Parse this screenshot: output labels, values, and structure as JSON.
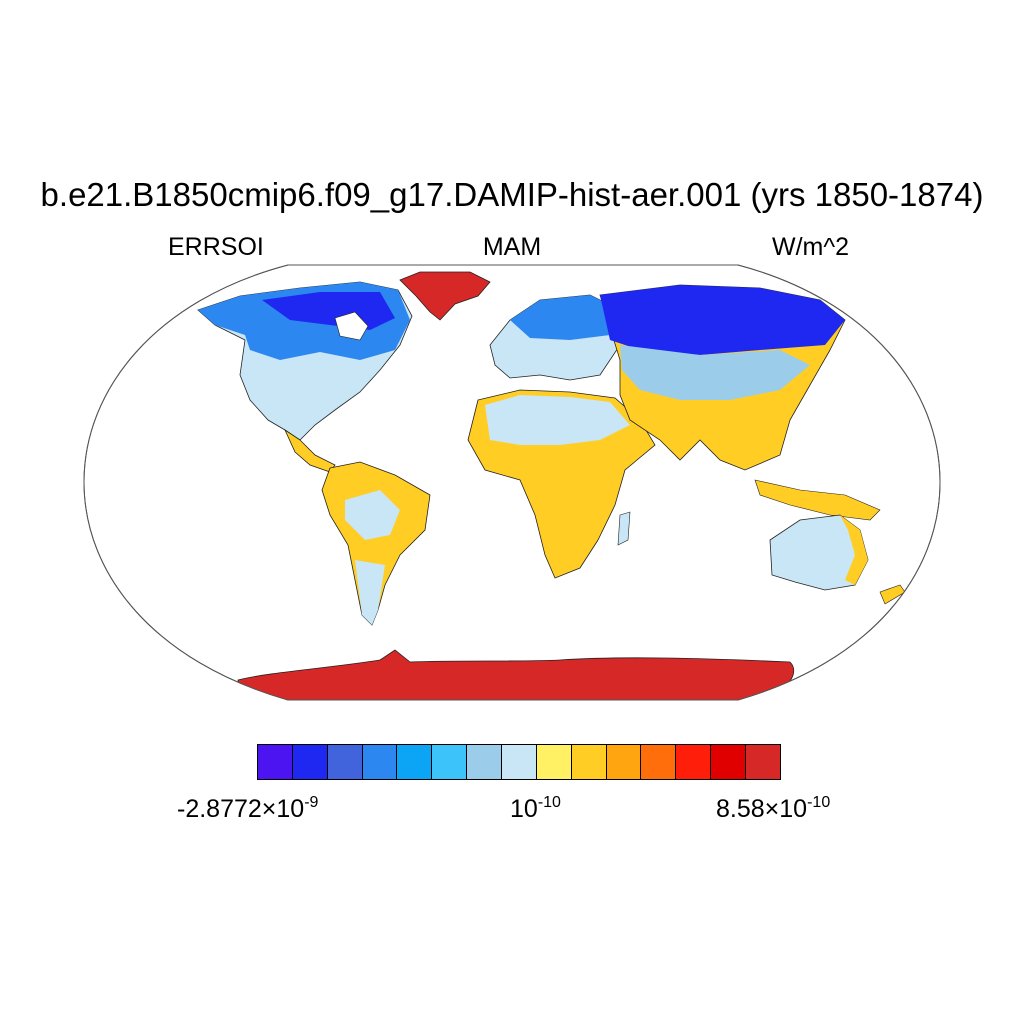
{
  "title": "b.e21.B1850cmip6.f09_g17.DAMIP-hist-aer.001 (yrs 1850-1874)",
  "subtitle_left": "ERRSOI",
  "subtitle_center": "MAM",
  "subtitle_right": "W/m^2",
  "colorbar": {
    "colors": [
      "#4b14f0",
      "#1e28f0",
      "#4164dc",
      "#2d87f0",
      "#0ca5f5",
      "#3cc3fa",
      "#9bcdeb",
      "#c8e6f5",
      "#fff064",
      "#ffcd23",
      "#ffa50f",
      "#ff6e0a",
      "#ff1e0a",
      "#e10000",
      "#d72828"
    ],
    "label_left_mantissa": "-2.8772",
    "label_left_times": "×10",
    "label_left_exp": "-9",
    "label_mid_base": "10",
    "label_mid_exp": "-10",
    "label_right_mantissa": "8.58",
    "label_right_times": "×10",
    "label_right_exp": "-10"
  },
  "map": {
    "projection": "Robinson",
    "land_colors": {
      "polar_ice": "#d72828",
      "high_latitude": "#2d87f0",
      "mid_latitude": "#c8e6f5",
      "subtropical": "#ffcd23"
    }
  }
}
